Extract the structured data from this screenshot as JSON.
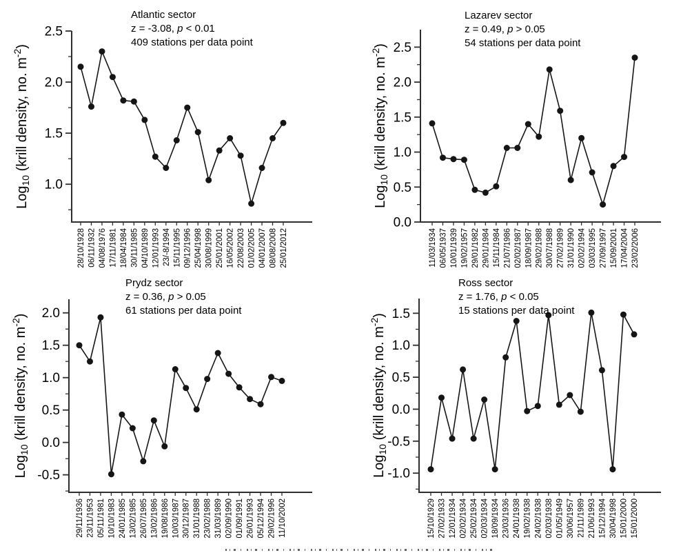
{
  "figure": {
    "background_color": "#ffffff",
    "text_color": "#000000",
    "series_color": "#151515",
    "axis_color": "#2e2e2e"
  },
  "chart_data": [
    {
      "type": "line",
      "title": "Atlantic  sector",
      "stats_prefix": "z = -3.08, ",
      "stats_italic": "p",
      "stats_suffix": " < 0.01",
      "stations_note": "409 stations per data point",
      "ylabel_segments": [
        {
          "t": "Log"
        },
        {
          "t": "10",
          "style": "sub"
        },
        {
          "t": " (krill density, no. m"
        },
        {
          "t": "-2",
          "style": "sup"
        },
        {
          "t": ")"
        }
      ],
      "categories": [
        "28/10/1928",
        "06/11/1932",
        "04/08/1976",
        "17/11/1981",
        "18/04/1984",
        "30/11/1985",
        "04/10/1989",
        "12/01/1993",
        "23/-8/1994",
        "15/11/1995",
        "09/12/1996",
        "25/04/1998",
        "30/08/1999",
        "25/01/2001",
        "16/05/2002",
        "22/08/2003",
        "01/02/2005",
        "04/01/2007",
        "08/08/2008",
        "25/01/2012"
      ],
      "values": [
        2.15,
        1.76,
        2.3,
        2.05,
        1.82,
        1.81,
        1.63,
        1.27,
        1.16,
        1.43,
        1.75,
        1.51,
        1.04,
        1.33,
        1.45,
        1.28,
        0.81,
        1.16,
        1.45,
        1.6
      ],
      "y_tick_labels": [
        "1.0",
        "1.5",
        "2.0",
        "2.5"
      ],
      "y_tick_values": [
        1.0,
        1.5,
        2.0,
        2.5
      ],
      "minor_tick_values": [
        0.75,
        1.25,
        1.75,
        2.25
      ],
      "ylim": [
        0.63,
        2.5
      ],
      "grid": false,
      "legend": null,
      "marker": "circle"
    },
    {
      "type": "line",
      "title": "Lazarev sector",
      "stats_prefix": "z = 0.49, ",
      "stats_italic": "p",
      "stats_suffix": " > 0.05",
      "stations_note": "54 stations per data point",
      "ylabel_segments": [
        {
          "t": "Log"
        },
        {
          "t": "10",
          "style": "sub"
        },
        {
          "t": " (krill density, no. m"
        },
        {
          "t": "-2",
          "style": "sup"
        },
        {
          "t": ")"
        }
      ],
      "categories": [
        "11/03/1934",
        "06/05/1937",
        "10/01/1939",
        "19/02/1957",
        "29/01/1982",
        "29/01/1984",
        "15/11/1984",
        "21/07/1986",
        "02/02/1987",
        "18/09/1987",
        "29/02/1988",
        "30/07/1988",
        "27/02/1989",
        "31/01/1990",
        "02/02/1994",
        "03/03/1995",
        "27/09/1997",
        "15/09/2001",
        "17/04/2004",
        "23/02/2006"
      ],
      "values": [
        1.41,
        0.92,
        0.9,
        0.89,
        0.46,
        0.42,
        0.51,
        1.06,
        1.06,
        1.4,
        1.22,
        2.18,
        1.59,
        0.6,
        1.2,
        0.71,
        0.25,
        0.8,
        0.93,
        2.35
      ],
      "y_tick_labels": [
        "0.0",
        "0.5",
        "1.0",
        "1.5",
        "2.0",
        "2.5"
      ],
      "y_tick_values": [
        0.0,
        0.5,
        1.0,
        1.5,
        2.0,
        2.5
      ],
      "minor_tick_values": [
        0.25,
        0.75,
        1.25,
        1.75,
        2.25
      ],
      "ylim": [
        0.0,
        2.75
      ],
      "grid": false,
      "legend": null,
      "marker": "circle"
    },
    {
      "type": "line",
      "title": "Prydz sector",
      "stats_prefix": "z = 0.36, ",
      "stats_italic": "p",
      "stats_suffix": " > 0.05",
      "stations_note": "61 stations per data point",
      "ylabel_segments": [
        {
          "t": "Log"
        },
        {
          "t": "10",
          "style": "sub"
        },
        {
          "t": " (krill density, no. m"
        },
        {
          "t": "-2",
          "style": "sup"
        },
        {
          "t": ")"
        }
      ],
      "categories": [
        "29/11/1936",
        "23/11/1953",
        "05/11/1981",
        "10/10/1983",
        "24/01/1985",
        "13/02/1985",
        "26/07/1985",
        "13/02/1986",
        "19/08/1986",
        "10/03/1987",
        "30/12/1987",
        "31/01/1988",
        "23/02/1988",
        "31/03/1989",
        "02/09/1990",
        "01/09/1991",
        "26/01/1993",
        "05/12/1994",
        "29/02/1996",
        "11/10/2002"
      ],
      "values": [
        1.5,
        1.25,
        1.93,
        -0.49,
        0.43,
        0.22,
        -0.29,
        0.34,
        -0.06,
        1.13,
        0.84,
        0.51,
        0.98,
        1.38,
        1.06,
        0.85,
        0.67,
        0.59,
        1.01,
        0.95
      ],
      "y_tick_labels": [
        "-0.5",
        "0.0",
        "0.5",
        "1.0",
        "1.5",
        "2.0"
      ],
      "y_tick_values": [
        -0.5,
        0.0,
        0.5,
        1.0,
        1.5,
        2.0
      ],
      "minor_tick_values": [
        -0.75,
        -0.25,
        0.25,
        0.75,
        1.25,
        1.75
      ],
      "ylim": [
        -0.77,
        2.21
      ],
      "grid": false,
      "legend": null,
      "marker": "circle"
    },
    {
      "type": "line",
      "title": "Ross sector",
      "stats_prefix": "z = 1.76, ",
      "stats_italic": "p",
      "stats_suffix": " < 0.05",
      "stations_note": "15 stations per data point",
      "ylabel_segments": [
        {
          "t": "Log"
        },
        {
          "t": "10",
          "style": "sub"
        },
        {
          "t": " (krill density, no. m"
        },
        {
          "t": "-2",
          "style": "sup"
        },
        {
          "t": ")"
        }
      ],
      "categories": [
        "15/10/1929",
        "27/02/1933",
        "12/01/1934",
        "02/02/1934",
        "25/02/1934",
        "02/03/1934",
        "18/09/1934",
        "23/03/1936",
        "24/01/1938",
        "19/02/1938",
        "24/02/1938",
        "02/03/1938",
        "01/05/1949",
        "30/06/1957",
        "21/11/1989",
        "21/06/1993",
        "15/12/1994",
        "30/04/1998",
        "15/01/2000",
        "15/01/2000"
      ],
      "values": [
        -0.94,
        0.18,
        -0.46,
        0.62,
        -0.46,
        0.15,
        -0.94,
        0.81,
        1.38,
        -0.03,
        0.05,
        1.47,
        0.07,
        0.22,
        -0.04,
        1.51,
        0.61,
        -0.94,
        1.48,
        1.17
      ],
      "y_tick_labels": [
        "-1.0",
        "-0.5",
        "0.0",
        "0.5",
        "1.0",
        "1.5"
      ],
      "y_tick_values": [
        -1.0,
        -0.5,
        0.0,
        0.5,
        1.0,
        1.5
      ],
      "minor_tick_values": [
        -1.25,
        -0.75,
        -0.25,
        0.25,
        0.75,
        1.25
      ],
      "ylim": [
        -1.3,
        1.73
      ],
      "grid": false,
      "legend": null,
      "marker": "circle"
    }
  ]
}
